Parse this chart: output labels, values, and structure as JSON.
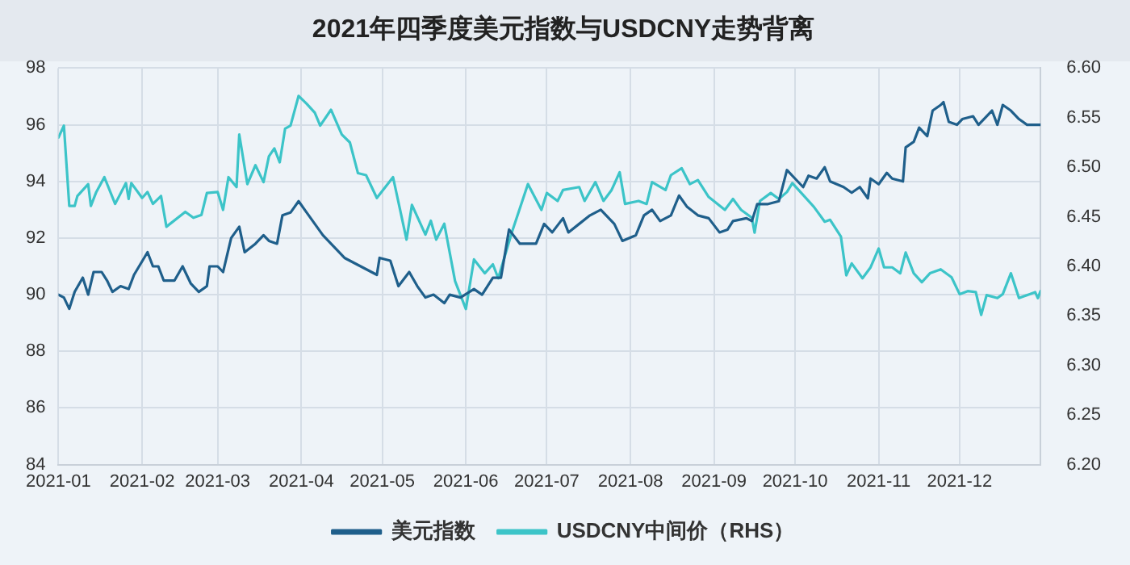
{
  "chart_data": {
    "type": "line",
    "title": "2021年四季度美元指数与USDCNY走势背离",
    "xlim": [
      "2021-01-01",
      "2021-12-31"
    ],
    "xticks": [
      "2021-01",
      "2021-02",
      "2021-03",
      "2021-04",
      "2021-05",
      "2021-06",
      "2021-07",
      "2021-08",
      "2021-09",
      "2021-10",
      "2021-11",
      "2021-12"
    ],
    "ylim": [
      84,
      98
    ],
    "yticks": [
      84,
      86,
      88,
      90,
      92,
      94,
      96,
      98
    ],
    "y2lim": [
      6.2,
      6.6
    ],
    "y2ticks": [
      {
        "value": 6.2,
        "label": "6.20"
      },
      {
        "value": 6.25,
        "label": "6.25"
      },
      {
        "value": 6.3,
        "label": "6.30"
      },
      {
        "value": 6.35,
        "label": "6.35"
      },
      {
        "value": 6.4,
        "label": "6.40"
      },
      {
        "value": 6.45,
        "label": "6.45"
      },
      {
        "value": 6.5,
        "label": "6.50"
      },
      {
        "value": 6.55,
        "label": "6.55"
      },
      {
        "value": 6.6,
        "label": "6.60"
      }
    ],
    "grid": true,
    "legend": "bottom",
    "marker": "none",
    "line_style": "solid",
    "series": [
      {
        "name": "美元指数",
        "color": "#1f5f8b",
        "x": [
          "2021-01-01",
          "2021-01-03",
          "2021-01-05",
          "2021-01-07",
          "2021-01-10",
          "2021-01-12",
          "2021-01-14",
          "2021-01-17",
          "2021-01-19",
          "2021-01-21",
          "2021-01-24",
          "2021-01-27",
          "2021-01-29",
          "2021-02-03",
          "2021-02-05",
          "2021-02-07",
          "2021-02-09",
          "2021-02-13",
          "2021-02-16",
          "2021-02-19",
          "2021-02-22",
          "2021-02-25",
          "2021-02-26",
          "2021-03-01",
          "2021-03-03",
          "2021-03-06",
          "2021-03-09",
          "2021-03-11",
          "2021-03-15",
          "2021-03-18",
          "2021-03-20",
          "2021-03-23",
          "2021-03-25",
          "2021-03-28",
          "2021-03-31",
          "2021-04-03",
          "2021-04-06",
          "2021-04-09",
          "2021-04-13",
          "2021-04-17",
          "2021-04-21",
          "2021-04-25",
          "2021-04-29",
          "2021-04-30",
          "2021-05-04",
          "2021-05-07",
          "2021-05-11",
          "2021-05-14",
          "2021-05-17",
          "2021-05-20",
          "2021-05-24",
          "2021-05-26",
          "2021-05-30",
          "2021-06-04",
          "2021-06-07",
          "2021-06-11",
          "2021-06-14",
          "2021-06-17",
          "2021-06-21",
          "2021-06-27",
          "2021-06-30",
          "2021-07-03",
          "2021-07-07",
          "2021-07-09",
          "2021-07-13",
          "2021-07-17",
          "2021-07-21",
          "2021-07-26",
          "2021-07-29",
          "2021-08-03",
          "2021-08-06",
          "2021-08-09",
          "2021-08-12",
          "2021-08-16",
          "2021-08-19",
          "2021-08-22",
          "2021-08-26",
          "2021-08-30",
          "2021-09-03",
          "2021-09-06",
          "2021-09-08",
          "2021-09-13",
          "2021-09-15",
          "2021-09-17",
          "2021-09-21",
          "2021-09-25",
          "2021-09-28",
          "2021-10-01",
          "2021-10-04",
          "2021-10-06",
          "2021-10-09",
          "2021-10-12",
          "2021-10-14",
          "2021-10-19",
          "2021-10-22",
          "2021-10-25",
          "2021-10-28",
          "2021-10-29",
          "2021-11-01",
          "2021-11-04",
          "2021-11-06",
          "2021-11-10",
          "2021-11-11",
          "2021-11-14",
          "2021-11-16",
          "2021-11-19",
          "2021-11-21",
          "2021-11-24",
          "2021-11-25",
          "2021-11-27",
          "2021-11-30",
          "2021-12-02",
          "2021-12-06",
          "2021-12-08",
          "2021-12-11",
          "2021-12-13",
          "2021-12-15",
          "2021-12-17",
          "2021-12-20",
          "2021-12-23",
          "2021-12-26",
          "2021-12-29",
          "2021-12-31"
        ],
        "values": [
          90.0,
          89.9,
          89.5,
          90.1,
          90.6,
          90.0,
          90.8,
          90.8,
          90.5,
          90.1,
          90.3,
          90.2,
          90.7,
          91.5,
          91.0,
          91.0,
          90.5,
          90.5,
          91.0,
          90.4,
          90.1,
          90.3,
          91.0,
          91.0,
          90.8,
          92.0,
          92.4,
          91.5,
          91.8,
          92.1,
          91.9,
          91.8,
          92.8,
          92.9,
          93.3,
          92.9,
          92.5,
          92.1,
          91.7,
          91.3,
          91.1,
          90.9,
          90.7,
          91.3,
          91.2,
          90.3,
          90.8,
          90.3,
          89.9,
          90.0,
          89.7,
          90.0,
          89.9,
          90.2,
          90.0,
          90.6,
          90.6,
          92.3,
          91.8,
          91.8,
          92.5,
          92.2,
          92.7,
          92.2,
          92.5,
          92.8,
          93.0,
          92.5,
          91.9,
          92.1,
          92.8,
          93.0,
          92.6,
          92.8,
          93.5,
          93.1,
          92.8,
          92.7,
          92.2,
          92.3,
          92.6,
          92.7,
          92.6,
          93.2,
          93.2,
          93.3,
          94.4,
          94.1,
          93.8,
          94.2,
          94.1,
          94.5,
          94.0,
          93.8,
          93.6,
          93.8,
          93.4,
          94.1,
          93.9,
          94.3,
          94.1,
          94.0,
          95.2,
          95.4,
          95.9,
          95.6,
          96.5,
          96.7,
          96.8,
          96.1,
          96.0,
          96.2,
          96.3,
          96.0,
          96.3,
          96.5,
          96.0,
          96.7,
          96.5,
          96.2,
          96.0,
          96.0,
          96.0
        ]
      },
      {
        "name": "USDCNY中间价（RHS）",
        "color": "#3cc4c8",
        "axis": "y2",
        "x": [
          "2021-01-01",
          "2021-01-03",
          "2021-01-05",
          "2021-01-07",
          "2021-01-08",
          "2021-01-12",
          "2021-01-13",
          "2021-01-15",
          "2021-01-18",
          "2021-01-22",
          "2021-01-26",
          "2021-01-27",
          "2021-01-28",
          "2021-02-01",
          "2021-02-03",
          "2021-02-05",
          "2021-02-08",
          "2021-02-10",
          "2021-02-17",
          "2021-02-20",
          "2021-02-23",
          "2021-02-25",
          "2021-03-01",
          "2021-03-03",
          "2021-03-05",
          "2021-03-08",
          "2021-03-09",
          "2021-03-12",
          "2021-03-15",
          "2021-03-18",
          "2021-03-20",
          "2021-03-22",
          "2021-03-24",
          "2021-03-26",
          "2021-03-28",
          "2021-03-31",
          "2021-04-03",
          "2021-04-06",
          "2021-04-08",
          "2021-04-12",
          "2021-04-16",
          "2021-04-19",
          "2021-04-22",
          "2021-04-25",
          "2021-04-29",
          "2021-05-05",
          "2021-05-10",
          "2021-05-12",
          "2021-05-17",
          "2021-05-19",
          "2021-05-21",
          "2021-05-24",
          "2021-05-28",
          "2021-06-01",
          "2021-06-04",
          "2021-06-08",
          "2021-06-11",
          "2021-06-13",
          "2021-06-18",
          "2021-06-24",
          "2021-06-29",
          "2021-07-01",
          "2021-07-05",
          "2021-07-07",
          "2021-07-13",
          "2021-07-15",
          "2021-07-19",
          "2021-07-22",
          "2021-07-25",
          "2021-07-28",
          "2021-07-30",
          "2021-08-04",
          "2021-08-07",
          "2021-08-09",
          "2021-08-14",
          "2021-08-16",
          "2021-08-20",
          "2021-08-23",
          "2021-08-26",
          "2021-08-30",
          "2021-09-05",
          "2021-09-08",
          "2021-09-11",
          "2021-09-15",
          "2021-09-16",
          "2021-09-18",
          "2021-09-22",
          "2021-09-25",
          "2021-09-28",
          "2021-09-30",
          "2021-10-03",
          "2021-10-08",
          "2021-10-12",
          "2021-10-14",
          "2021-10-18",
          "2021-10-20",
          "2021-10-22",
          "2021-10-26",
          "2021-10-29",
          "2021-11-01",
          "2021-11-03",
          "2021-11-06",
          "2021-11-09",
          "2021-11-11",
          "2021-11-14",
          "2021-11-17",
          "2021-11-20",
          "2021-11-24",
          "2021-11-28",
          "2021-12-01",
          "2021-12-04",
          "2021-12-07",
          "2021-12-09",
          "2021-12-11",
          "2021-12-15",
          "2021-12-17",
          "2021-12-20",
          "2021-12-23",
          "2021-12-27",
          "2021-12-29",
          "2021-12-30",
          "2021-12-31"
        ],
        "values": [
          6.53,
          6.542,
          6.461,
          6.461,
          6.471,
          6.483,
          6.461,
          6.475,
          6.49,
          6.463,
          6.484,
          6.468,
          6.484,
          6.469,
          6.475,
          6.463,
          6.471,
          6.44,
          6.455,
          6.449,
          6.452,
          6.474,
          6.475,
          6.457,
          6.49,
          6.48,
          6.533,
          6.483,
          6.502,
          6.485,
          6.511,
          6.519,
          6.505,
          6.539,
          6.542,
          6.572,
          6.564,
          6.555,
          6.542,
          6.558,
          6.533,
          6.525,
          6.494,
          6.492,
          6.469,
          6.49,
          6.427,
          6.462,
          6.432,
          6.446,
          6.427,
          6.443,
          6.385,
          6.357,
          6.407,
          6.393,
          6.402,
          6.388,
          6.434,
          6.483,
          6.457,
          6.474,
          6.466,
          6.477,
          6.48,
          6.466,
          6.485,
          6.466,
          6.477,
          6.495,
          6.463,
          6.466,
          6.463,
          6.485,
          6.477,
          6.492,
          6.499,
          6.483,
          6.487,
          6.47,
          6.457,
          6.468,
          6.457,
          6.449,
          6.434,
          6.466,
          6.474,
          6.468,
          6.475,
          6.484,
          6.475,
          6.46,
          6.445,
          6.447,
          6.43,
          6.391,
          6.403,
          6.388,
          6.399,
          6.418,
          6.399,
          6.399,
          6.393,
          6.414,
          6.393,
          6.384,
          6.393,
          6.397,
          6.389,
          6.372,
          6.375,
          6.374,
          6.351,
          6.371,
          6.368,
          6.372,
          6.393,
          6.368,
          6.372,
          6.374,
          6.368,
          6.375
        ]
      }
    ]
  }
}
